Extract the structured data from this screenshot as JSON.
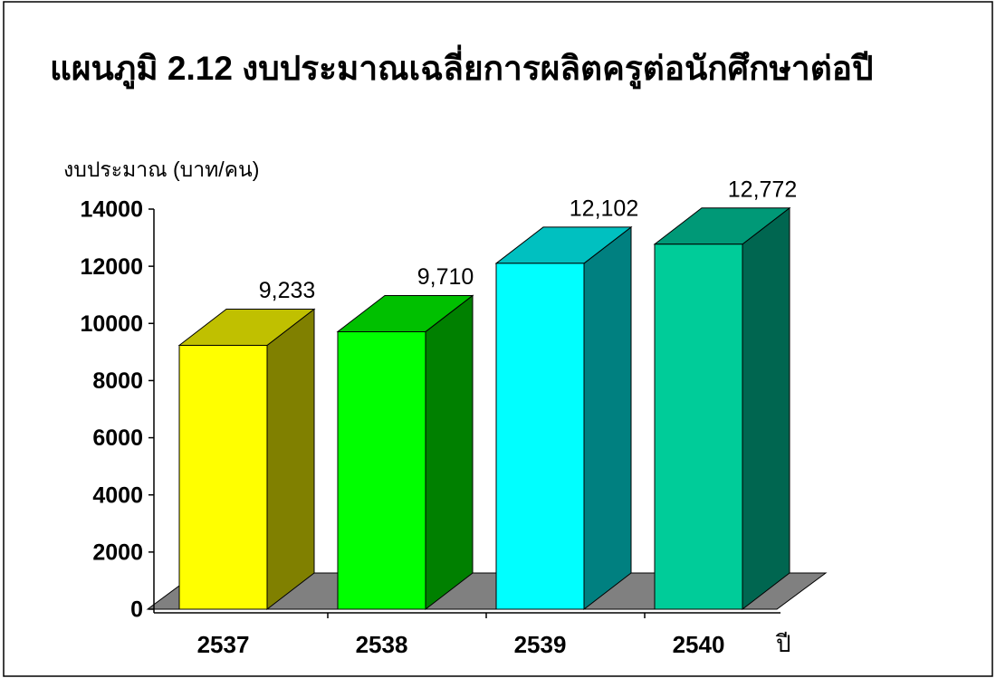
{
  "chart_data": {
    "type": "bar3d",
    "title": "แผนภูมิ 2.12  งบประมาณเฉลี่ยการผลิตครูต่อนักศึกษาต่อปี",
    "y_label": "งบประมาณ (บาท/คน)",
    "x_label": "ปี",
    "categories": [
      "2537",
      "2538",
      "2539",
      "2540"
    ],
    "values": [
      9233,
      9710,
      12102,
      12772
    ],
    "value_labels": [
      "9,233",
      "9,710",
      "12,102",
      "12,772"
    ],
    "colors": [
      "#ffff00",
      "#00ff00",
      "#00ffff",
      "#00cc99"
    ],
    "side_colors": [
      "#808000",
      "#008000",
      "#008080",
      "#006650"
    ],
    "top_colors": [
      "#c0c000",
      "#00c000",
      "#00c0c0",
      "#009977"
    ],
    "ylim": [
      0,
      14000
    ],
    "yticks": [
      0,
      2000,
      4000,
      6000,
      8000,
      10000,
      12000,
      14000
    ]
  }
}
